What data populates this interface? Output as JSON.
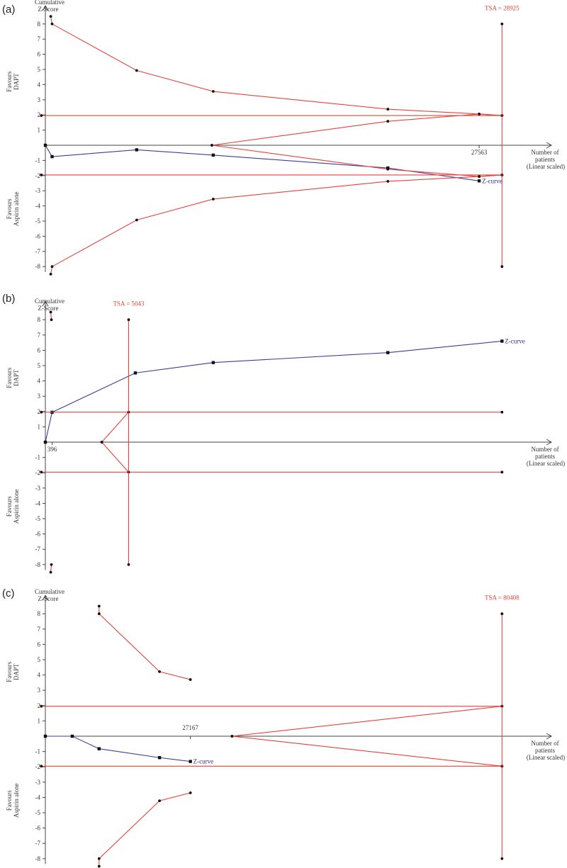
{
  "colors": {
    "boundary": "#e8423a",
    "zcurve": "#3a3f96",
    "axis": "#444444",
    "text": "#333333"
  },
  "axis_texts": {
    "y_title_line1": "Cumulative",
    "y_title_line2": "Z-Score",
    "favours_top_line1": "Favours",
    "favours_top_line2": "DAPT",
    "favours_bottom_line1": "Favours",
    "favours_bottom_line2": "Aspirin alone",
    "x_title_line1": "Number of",
    "x_title_line2": "patients",
    "x_title_line3": "(Linear scaled)"
  },
  "chart_data": [
    {
      "type": "line",
      "panel_label": "(a)",
      "ylim": [
        -8,
        8
      ],
      "y_ticks": [
        "8",
        "7",
        "6",
        "5",
        "4",
        "3",
        "2",
        "1",
        "-1",
        "-2",
        "-3",
        "-4",
        "-5",
        "-6",
        "-7",
        "-8"
      ],
      "x_tick_label": "27563",
      "tsa_label": "TSA = 28925",
      "zcurve_label": "Z-curve",
      "series": [
        {
          "name": "Z-curve",
          "kind": "zcurve",
          "points": [
            [
              0,
              0
            ],
            [
              0.5,
              -0.75
            ],
            [
              6.8,
              -0.3
            ],
            [
              12.5,
              -0.65
            ],
            [
              25.5,
              -1.5
            ],
            [
              32.3,
              -2.35
            ]
          ]
        },
        {
          "kind": "boundary",
          "points": [
            [
              0.4,
              8.5
            ],
            [
              0.5,
              8
            ],
            [
              6.8,
              4.93
            ],
            [
              12.5,
              3.55
            ],
            [
              25.5,
              2.38
            ],
            [
              32.3,
              2.06
            ],
            [
              34,
              1.96
            ]
          ]
        },
        {
          "kind": "boundary",
          "points": [
            [
              0.4,
              -8.5
            ],
            [
              0.5,
              -8
            ],
            [
              6.8,
              -4.93
            ],
            [
              12.5,
              -3.55
            ],
            [
              25.5,
              -2.38
            ],
            [
              32.3,
              -2.06
            ],
            [
              34,
              -1.96
            ]
          ]
        },
        {
          "kind": "boundary",
          "points": [
            [
              -0.3,
              1.96
            ],
            [
              34,
              1.96
            ]
          ]
        },
        {
          "kind": "boundary",
          "points": [
            [
              -0.3,
              -1.96
            ],
            [
              34,
              -1.96
            ]
          ]
        },
        {
          "kind": "boundary",
          "points": [
            [
              12.4,
              0
            ],
            [
              25.5,
              1.58
            ],
            [
              32.3,
              2.06
            ],
            [
              34,
              1.96
            ]
          ]
        },
        {
          "kind": "boundary",
          "points": [
            [
              12.4,
              0
            ],
            [
              25.5,
              -1.58
            ],
            [
              32.3,
              -2.06
            ],
            [
              34,
              -1.96
            ]
          ]
        },
        {
          "kind": "tsa",
          "points": [
            [
              34,
              8
            ],
            [
              34,
              -8
            ]
          ]
        }
      ]
    },
    {
      "type": "line",
      "panel_label": "(b)",
      "ylim": [
        -8,
        8
      ],
      "y_ticks": [
        "8",
        "7",
        "6",
        "5",
        "4",
        "3",
        "2",
        "1",
        "-1",
        "-2",
        "-3",
        "-4",
        "-5",
        "-6",
        "-7",
        "-8"
      ],
      "x_tick_label": "396",
      "tsa_label": "TSA = 5043",
      "zcurve_label": "Z-curve",
      "series": [
        {
          "name": "Z-curve",
          "kind": "zcurve",
          "points": [
            [
              0,
              0
            ],
            [
              0.5,
              1.95
            ],
            [
              6.7,
              4.52
            ],
            [
              12.5,
              5.2
            ],
            [
              25.5,
              5.85
            ],
            [
              34,
              6.6
            ]
          ]
        },
        {
          "kind": "boundary",
          "points": [
            [
              0.4,
              8.5
            ],
            [
              0.45,
              8
            ]
          ]
        },
        {
          "kind": "boundary",
          "points": [
            [
              0.4,
              -8.5
            ],
            [
              0.45,
              -8
            ]
          ]
        },
        {
          "kind": "boundary",
          "points": [
            [
              -0.3,
              1.96
            ],
            [
              34,
              1.96
            ]
          ]
        },
        {
          "kind": "boundary",
          "points": [
            [
              -0.3,
              -1.96
            ],
            [
              34,
              -1.96
            ]
          ]
        },
        {
          "kind": "boundary",
          "points": [
            [
              4.2,
              0
            ],
            [
              6.2,
              1.96
            ]
          ]
        },
        {
          "kind": "boundary",
          "points": [
            [
              4.2,
              0
            ],
            [
              6.2,
              -1.96
            ]
          ]
        },
        {
          "kind": "tsa",
          "points": [
            [
              6.2,
              8
            ],
            [
              6.2,
              -8
            ]
          ]
        }
      ]
    },
    {
      "type": "line",
      "panel_label": "(c)",
      "ylim": [
        -8,
        8
      ],
      "y_ticks": [
        "8",
        "7",
        "6",
        "5",
        "4",
        "3",
        "2",
        "1",
        "-1",
        "-2",
        "-3",
        "-4",
        "-5",
        "-6",
        "-7",
        "-8"
      ],
      "x_tick_label": "27167",
      "tsa_label": "TSA = 80408",
      "zcurve_label": "Z-curve",
      "series": [
        {
          "name": "Z-curve",
          "kind": "zcurve",
          "points": [
            [
              0,
              0
            ],
            [
              2,
              0
            ],
            [
              4,
              -0.82
            ],
            [
              8.5,
              -1.4
            ],
            [
              10.8,
              -1.65
            ]
          ]
        },
        {
          "kind": "boundary",
          "points": [
            [
              4,
              8.5
            ],
            [
              4,
              8
            ],
            [
              8.5,
              4.22
            ],
            [
              10.8,
              3.7
            ]
          ]
        },
        {
          "kind": "boundary",
          "points": [
            [
              4,
              -8.5
            ],
            [
              4,
              -8
            ],
            [
              8.5,
              -4.22
            ],
            [
              10.8,
              -3.7
            ]
          ]
        },
        {
          "kind": "boundary",
          "points": [
            [
              -0.3,
              1.96
            ],
            [
              34,
              1.96
            ]
          ]
        },
        {
          "kind": "boundary",
          "points": [
            [
              -0.3,
              -1.96
            ],
            [
              34,
              -1.96
            ]
          ]
        },
        {
          "kind": "boundary",
          "points": [
            [
              13.9,
              0
            ],
            [
              34,
              1.96
            ]
          ]
        },
        {
          "kind": "boundary",
          "points": [
            [
              13.9,
              0
            ],
            [
              34,
              -1.96
            ]
          ]
        },
        {
          "kind": "tsa",
          "points": [
            [
              34,
              8
            ],
            [
              34,
              -8
            ]
          ]
        }
      ]
    }
  ]
}
